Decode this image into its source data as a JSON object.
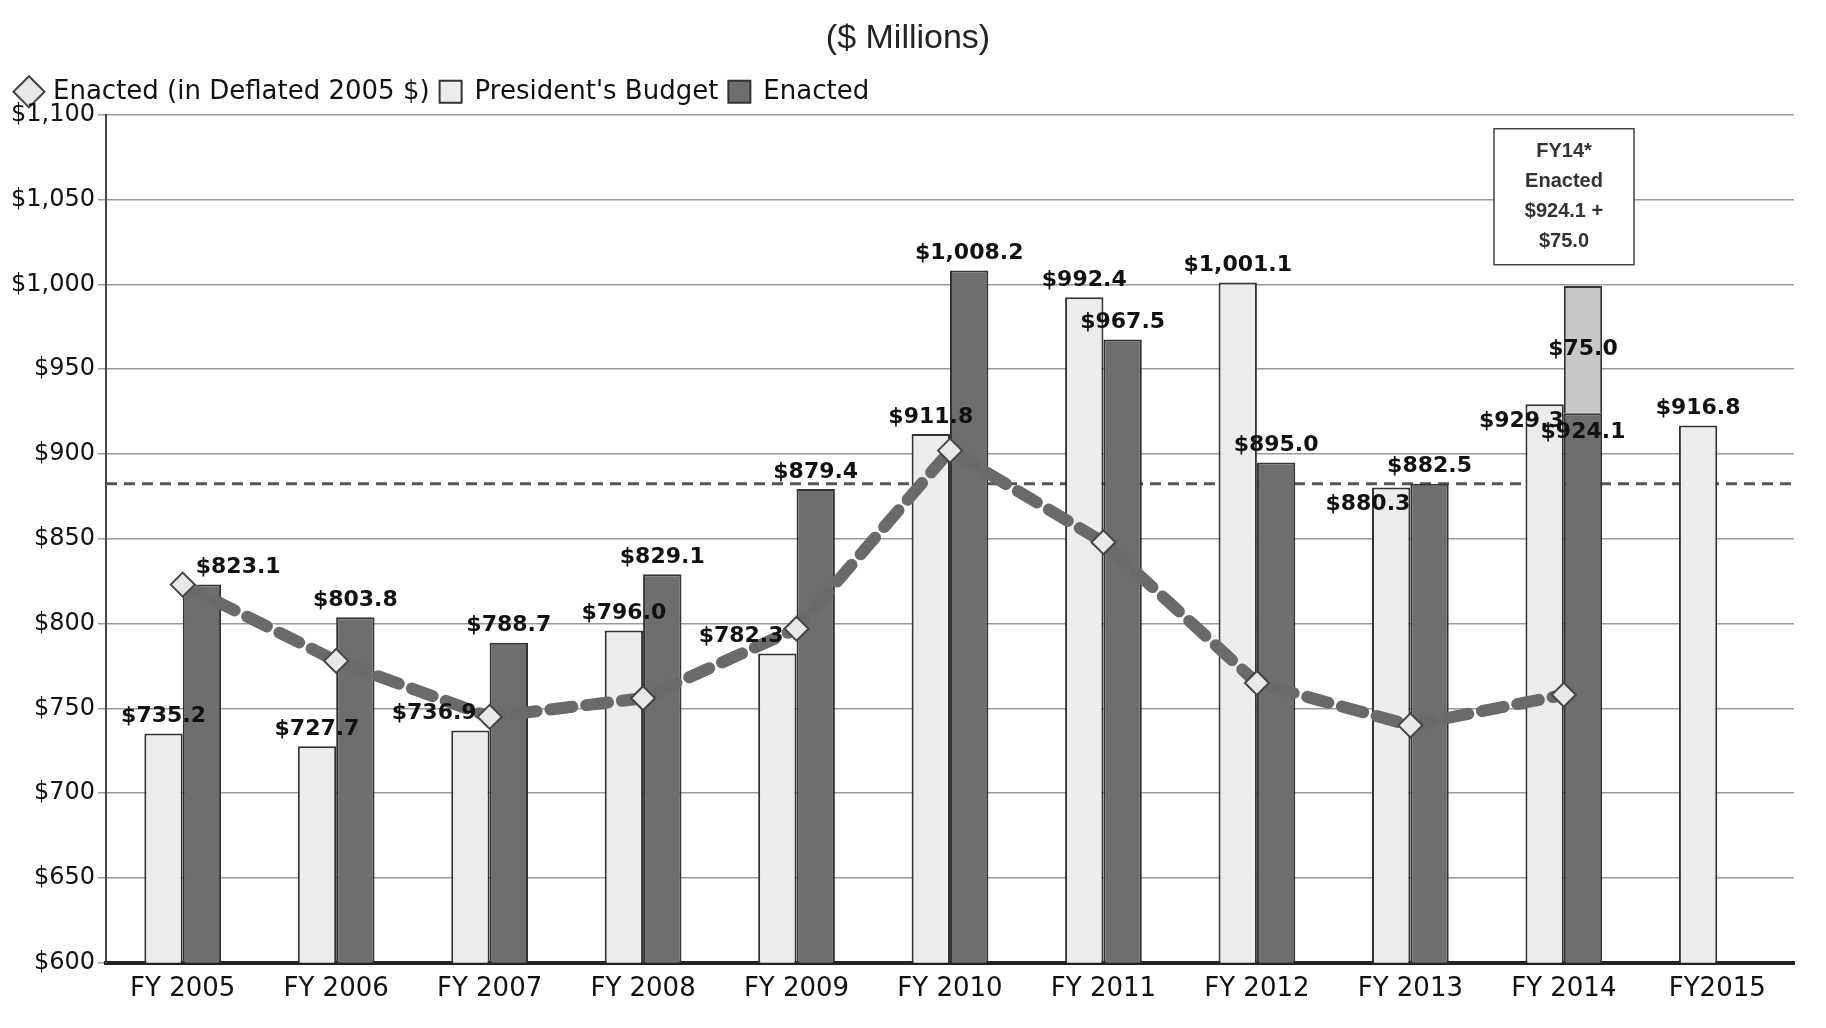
{
  "chart_data": {
    "type": "bar",
    "title": "($ Millions)",
    "categories": [
      "FY 2005",
      "FY 2006",
      "FY 2007",
      "FY 2008",
      "FY 2009",
      "FY 2010",
      "FY 2011",
      "FY 2012",
      "FY 2013",
      "FY 2014",
      "FY2015"
    ],
    "series": [
      {
        "name": "President's Budget",
        "color": "#ececec",
        "values": [
          735.2,
          727.7,
          736.9,
          796.0,
          782.3,
          911.8,
          992.4,
          1001.1,
          880.3,
          929.3,
          916.8
        ],
        "value_labels": [
          "$735.2",
          "$727.7",
          "$736.9",
          "$796.0",
          "$782.3",
          "$911.8",
          "$992.4",
          "$1,001.1",
          "$880.3",
          "$929.3",
          "$916.8"
        ]
      },
      {
        "name": "Enacted",
        "color": "#6e6e6e",
        "values": [
          823.1,
          803.8,
          788.7,
          829.1,
          879.4,
          1008.2,
          967.5,
          895.0,
          882.5,
          924.1,
          null
        ],
        "value_labels": [
          "$823.1",
          "$803.8",
          "$788.7",
          "$829.1",
          "$879.4",
          "$1,008.2",
          "$967.5",
          "$895.0",
          "$882.5",
          "$924.1",
          null
        ]
      },
      {
        "color": "#c8c8c8",
        "values": [
          null,
          null,
          null,
          null,
          null,
          null,
          null,
          null,
          null,
          75.0,
          null
        ],
        "base": [
          null,
          null,
          null,
          null,
          null,
          null,
          null,
          null,
          null,
          924.1,
          null
        ],
        "value_labels": [
          null,
          null,
          null,
          null,
          null,
          null,
          null,
          null,
          null,
          "$75.0",
          null
        ]
      },
      {
        "name": "Enacted (in Deflated 2005 $)",
        "type": "line",
        "color": "#6a6a6a",
        "marker": "diamond",
        "line_style": "dashed",
        "values": [
          823,
          778,
          745,
          756,
          797,
          902,
          848,
          765,
          740,
          758,
          null
        ]
      }
    ],
    "ylim": [
      600,
      1100
    ],
    "yticks": [
      {
        "value": 600,
        "label": "$600"
      },
      {
        "value": 650,
        "label": "$650"
      },
      {
        "value": 700,
        "label": "$700"
      },
      {
        "value": 750,
        "label": "$750"
      },
      {
        "value": 800,
        "label": "$800"
      },
      {
        "value": 850,
        "label": "$850"
      },
      {
        "value": 900,
        "label": "$900"
      },
      {
        "value": 950,
        "label": "$950"
      },
      {
        "value": 1000,
        "label": "$1,000"
      },
      {
        "value": 1050,
        "label": "$1,050"
      },
      {
        "value": 1100,
        "label": "$1,100"
      }
    ],
    "grid": "y",
    "legend": "top left",
    "ref_lines": [
      {
        "axis": "y",
        "value": 882.5,
        "color": "#555555",
        "line_style": "dashed"
      }
    ],
    "annotations": [
      "FY14*\nEnacted\n$924.1 +\n$75.0"
    ]
  }
}
